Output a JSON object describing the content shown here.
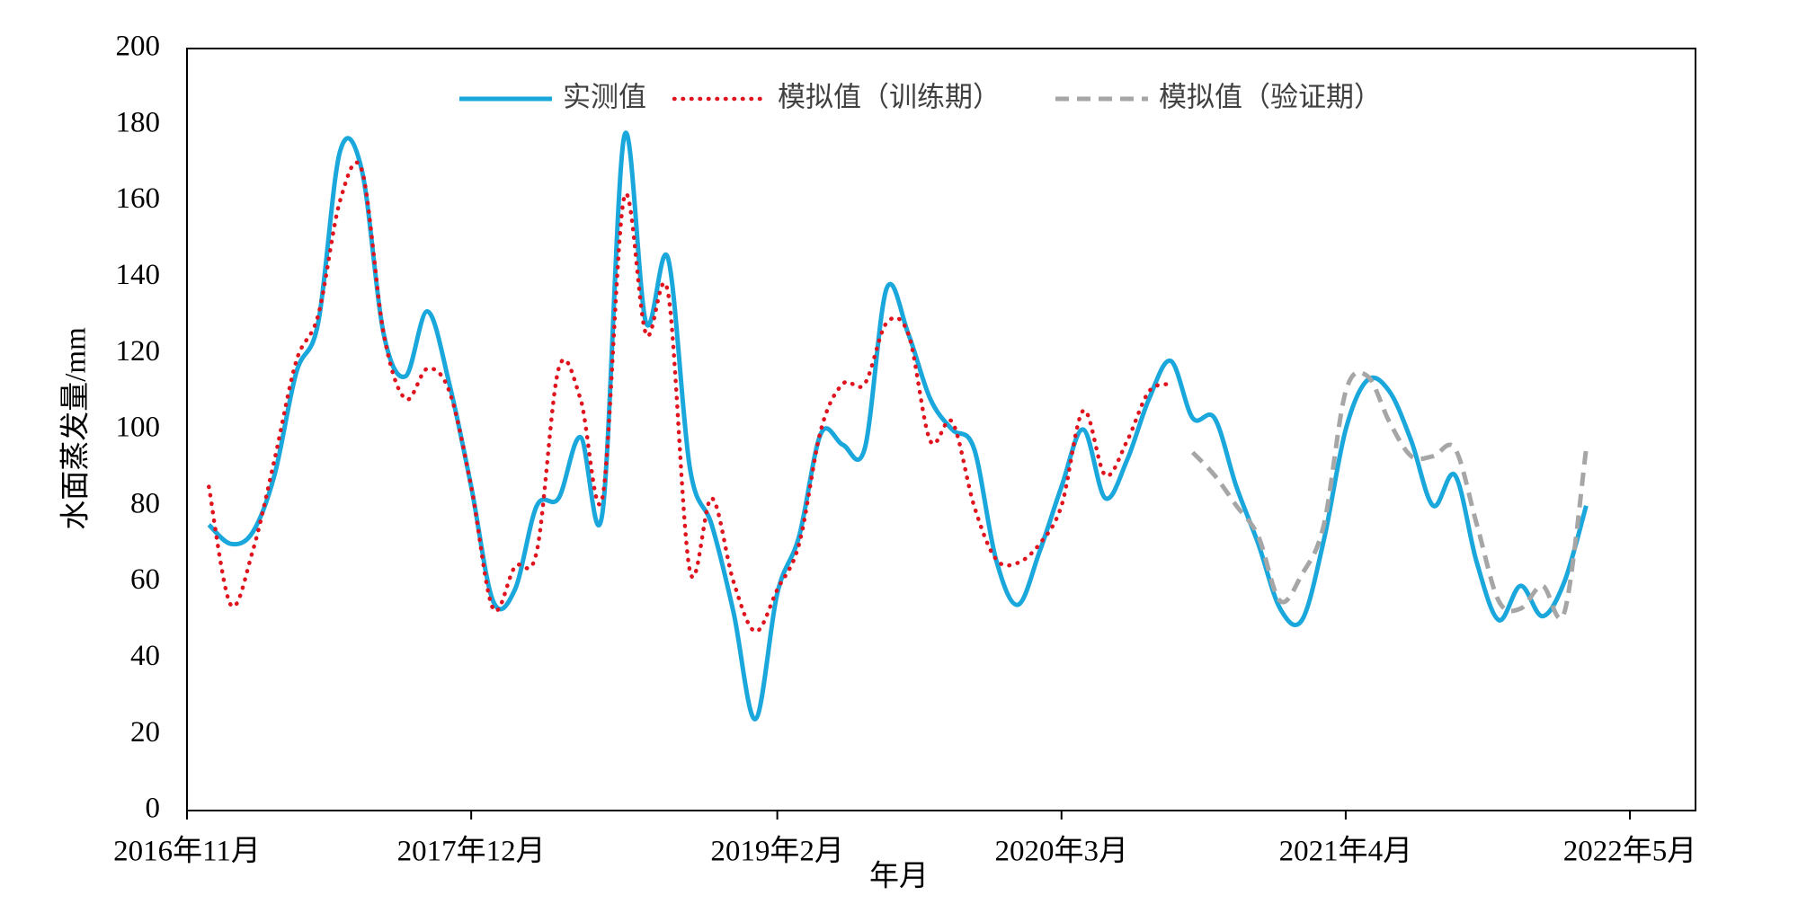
{
  "chart_data": {
    "type": "line",
    "x_label": "年月",
    "y_label": "水面蒸发量/mm",
    "legend": "top",
    "x": [
      "2016-12",
      "2017-01",
      "2017-02",
      "2017-03",
      "2017-04",
      "2017-05",
      "2017-06",
      "2017-07",
      "2017-08",
      "2017-09",
      "2017-10",
      "2017-11",
      "2017-12",
      "2018-01",
      "2018-02",
      "2018-03",
      "2018-04",
      "2018-05",
      "2018-06",
      "2018-07",
      "2018-08",
      "2018-09",
      "2018-10",
      "2018-11",
      "2018-12",
      "2019-01",
      "2019-02",
      "2019-03",
      "2019-04",
      "2019-05",
      "2019-06",
      "2019-07",
      "2019-08",
      "2019-09",
      "2019-10",
      "2019-11",
      "2019-12",
      "2020-01",
      "2020-02",
      "2020-03",
      "2020-04",
      "2020-05",
      "2020-06",
      "2020-07",
      "2020-08",
      "2020-09",
      "2020-10",
      "2020-11",
      "2020-12",
      "2021-01",
      "2021-02",
      "2021-03",
      "2021-04",
      "2021-05",
      "2021-06",
      "2021-07",
      "2021-08",
      "2021-09",
      "2021-10",
      "2021-11",
      "2021-12",
      "2022-01",
      "2022-02",
      "2022-03"
    ],
    "series": [
      {
        "name": "实测值",
        "color": "#1aa7dc",
        "style": "solid",
        "values": [
          75,
          70,
          73,
          88,
          115,
          128,
          173,
          168,
          125,
          114,
          131,
          112,
          85,
          55,
          58,
          80,
          82,
          98,
          78,
          177,
          128,
          145,
          90,
          75,
          52,
          24,
          57,
          72,
          99,
          96,
          95,
          137,
          125,
          108,
          100,
          95,
          66,
          54,
          68,
          85,
          100,
          82,
          92,
          108,
          118,
          103,
          103,
          85,
          70,
          53,
          50,
          71,
          100,
          113,
          110,
          97,
          80,
          88,
          65,
          50,
          59,
          51,
          60,
          80
        ]
      },
      {
        "name": "模拟值（训练期）",
        "color": "#e0141e",
        "style": "dotted",
        "values": [
          85,
          54,
          68,
          92,
          118,
          130,
          160,
          168,
          125,
          108,
          116,
          110,
          85,
          53,
          64,
          68,
          116,
          108,
          82,
          161,
          125,
          136,
          63,
          82,
          60,
          47,
          58,
          70,
          100,
          112,
          112,
          128,
          125,
          97,
          102,
          80,
          66,
          65,
          70,
          80,
          105,
          88,
          97,
          110,
          112,
          null,
          null,
          null,
          null,
          null,
          null,
          null,
          null,
          null,
          null,
          null,
          null,
          null,
          null,
          null,
          null,
          null,
          null,
          null
        ]
      },
      {
        "name": "模拟值（验证期）",
        "color": "#a6a6a6",
        "style": "dashed",
        "values": [
          null,
          null,
          null,
          null,
          null,
          null,
          null,
          null,
          null,
          null,
          null,
          null,
          null,
          null,
          null,
          null,
          null,
          null,
          null,
          null,
          null,
          null,
          null,
          null,
          null,
          null,
          null,
          null,
          null,
          null,
          null,
          null,
          null,
          null,
          null,
          null,
          null,
          null,
          null,
          null,
          null,
          null,
          null,
          null,
          null,
          94,
          88,
          80,
          72,
          55,
          62,
          75,
          110,
          114,
          102,
          93,
          93,
          95,
          75,
          55,
          53,
          59,
          52,
          95
        ]
      }
    ],
    "xlim": [
      "2016-11",
      "2022-08"
    ],
    "xticks": [
      {
        "value": "2016-11",
        "label": "2016年11月"
      },
      {
        "value": "2017-12",
        "label": "2017年12月"
      },
      {
        "value": "2019-02",
        "label": "2019年2月"
      },
      {
        "value": "2020-03",
        "label": "2020年3月"
      },
      {
        "value": "2021-04",
        "label": "2021年4月"
      },
      {
        "value": "2022-05",
        "label": "2022年5月"
      }
    ],
    "ylim": [
      0,
      200
    ],
    "yticks": [
      0,
      20,
      40,
      60,
      80,
      100,
      120,
      140,
      160,
      180,
      200
    ]
  }
}
